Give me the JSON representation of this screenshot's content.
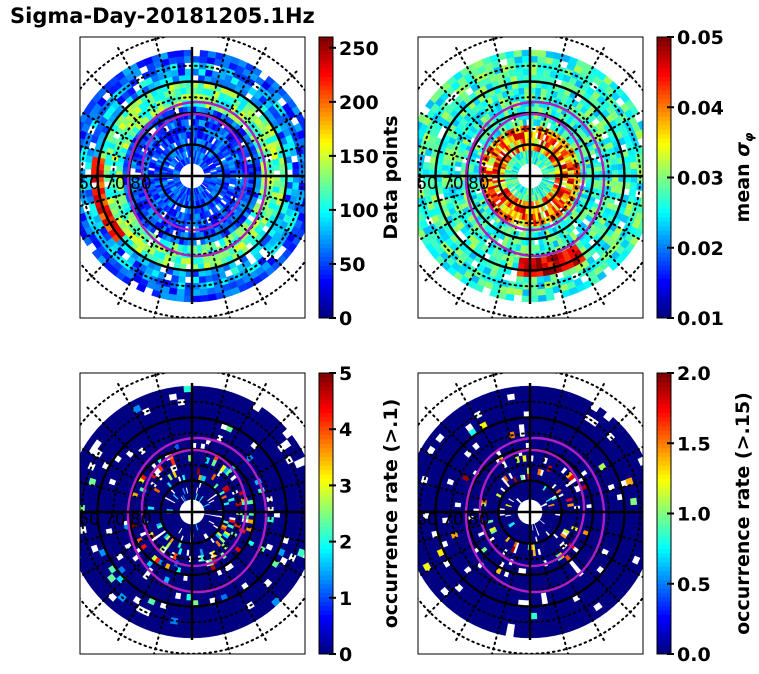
{
  "title": "Sigma-Day-20181205.1Hz",
  "chart_data": [
    {
      "type": "heatmap",
      "projection": "polar (magnetic latitude / MLT dial)",
      "id": "data-points",
      "colorbar": {
        "label": "Data points",
        "range": [
          0,
          260
        ],
        "ticks": [
          0,
          50,
          100,
          150,
          200,
          250
        ],
        "tick_labels": [
          "0",
          "50",
          "100",
          "150",
          "200",
          "250"
        ],
        "cmap": "jet"
      },
      "lat_labels": [
        "60",
        "70",
        "80"
      ],
      "ring_latitudes": [
        50,
        60,
        70,
        80
      ],
      "summary": "Mostly 20-80 counts (blue/cyan) across 50-88 MLAT, ring of 100-150 near 60-65 MLAT, peak ~250 at pre-noon high latitude sector"
    },
    {
      "type": "heatmap",
      "projection": "polar",
      "id": "mean-sigma-phi",
      "colorbar": {
        "label": "mean σ_φ",
        "range": [
          0.01,
          0.05
        ],
        "ticks": [
          0.01,
          0.02,
          0.03,
          0.04,
          0.05
        ],
        "tick_labels": [
          "0.01",
          "0.02",
          "0.03",
          "0.04",
          "0.05"
        ],
        "cmap": "jet"
      },
      "lat_labels": [
        "60",
        "70",
        "80"
      ],
      "summary": "Background ~0.02-0.03; elevated 0.04-0.05 in the auroral oval near 75-80 MLAT and pre-midnight 55-60 MLAT"
    },
    {
      "type": "heatmap",
      "projection": "polar",
      "id": "occurrence-gt-0.1",
      "colorbar": {
        "label": "occurrence rate (>.1)",
        "range": [
          0,
          5
        ],
        "ticks": [
          0,
          1,
          2,
          3,
          4,
          5
        ],
        "tick_labels": [
          "0",
          "1",
          "2",
          "3",
          "4",
          "5"
        ],
        "cmap": "jet"
      },
      "lat_labels": [
        "60",
        "70",
        "80"
      ],
      "summary": "Mostly 0; scattered 1-5 in oval at 70-80 MLAT (pre-noon and midnight sectors)"
    },
    {
      "type": "heatmap",
      "projection": "polar",
      "id": "occurrence-gt-0.15",
      "colorbar": {
        "label": "occurrence rate (>.15)",
        "range": [
          0.0,
          2.0
        ],
        "ticks": [
          0.0,
          0.5,
          1.0,
          1.5,
          2.0
        ],
        "tick_labels": [
          "0.0",
          "0.5",
          "1.0",
          "1.5",
          "2.0"
        ],
        "cmap": "jet"
      },
      "lat_labels": [
        "60",
        "70",
        "80"
      ],
      "summary": "Mostly 0; sparse 1-2 bins in oval around 70-80 MLAT"
    }
  ]
}
